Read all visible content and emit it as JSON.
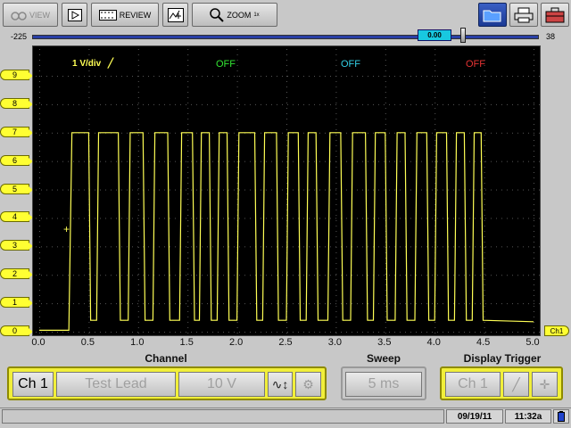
{
  "toolbar": {
    "view_label": "VIEW",
    "review_label": "REVIEW",
    "zoom_label": "ZOOM",
    "zoom_level": "1x"
  },
  "slider": {
    "left_label": "-225",
    "right_label": "38",
    "value": "0.00"
  },
  "screen": {
    "scale_label": "1 V/div",
    "ch2_state": "OFF",
    "ch3_state": "OFF",
    "ch4_state": "OFF",
    "ch2_color": "#33e633",
    "ch3_color": "#33d0e6",
    "ch4_color": "#e63333",
    "trace_color": "#ffff55"
  },
  "y_ticks": [
    "9",
    "8",
    "7",
    "6",
    "5",
    "4",
    "3",
    "2",
    "1",
    "0"
  ],
  "x_ticks": [
    "0.0",
    "0.5",
    "1.0",
    "1.5",
    "2.0",
    "2.5",
    "3.0",
    "3.5",
    "4.0",
    "4.5",
    "5.0"
  ],
  "channel_tag": "Ch1",
  "chart_data": {
    "type": "line",
    "x_range": [
      0,
      5.0
    ],
    "y_range": [
      0,
      9
    ],
    "x_unit_ticks": [
      0,
      0.5,
      1,
      1.5,
      2,
      2.5,
      3,
      3.5,
      4,
      4.5,
      5
    ],
    "series": [
      {
        "values_xy": [
          [
            0.0,
            0.05
          ],
          [
            0.3,
            0.05
          ],
          [
            0.3,
            0.1
          ],
          [
            0.33,
            7.0
          ],
          [
            0.5,
            7.0
          ],
          [
            0.52,
            0.4
          ],
          [
            0.58,
            0.4
          ],
          [
            0.6,
            7.0
          ],
          [
            0.8,
            7.0
          ],
          [
            0.82,
            0.4
          ],
          [
            0.9,
            0.4
          ],
          [
            0.92,
            7.0
          ],
          [
            1.05,
            7.0
          ],
          [
            1.07,
            0.4
          ],
          [
            1.15,
            0.4
          ],
          [
            1.17,
            7.0
          ],
          [
            1.3,
            7.0
          ],
          [
            1.32,
            0.4
          ],
          [
            1.42,
            0.4
          ],
          [
            1.44,
            7.0
          ],
          [
            1.55,
            7.0
          ],
          [
            1.57,
            0.4
          ],
          [
            1.62,
            0.4
          ],
          [
            1.64,
            7.0
          ],
          [
            1.72,
            7.0
          ],
          [
            1.74,
            0.4
          ],
          [
            1.8,
            0.4
          ],
          [
            1.82,
            7.0
          ],
          [
            1.9,
            7.0
          ],
          [
            1.92,
            0.4
          ],
          [
            2.0,
            0.4
          ],
          [
            2.02,
            7.0
          ],
          [
            2.18,
            7.0
          ],
          [
            2.2,
            0.4
          ],
          [
            2.26,
            0.4
          ],
          [
            2.28,
            7.0
          ],
          [
            2.4,
            7.0
          ],
          [
            2.42,
            0.4
          ],
          [
            2.5,
            0.4
          ],
          [
            2.52,
            7.0
          ],
          [
            2.62,
            7.0
          ],
          [
            2.64,
            0.4
          ],
          [
            2.7,
            0.4
          ],
          [
            2.72,
            7.0
          ],
          [
            2.8,
            7.0
          ],
          [
            2.82,
            0.4
          ],
          [
            2.92,
            0.4
          ],
          [
            2.94,
            7.0
          ],
          [
            3.05,
            7.0
          ],
          [
            3.07,
            0.4
          ],
          [
            3.15,
            0.4
          ],
          [
            3.17,
            7.0
          ],
          [
            3.3,
            7.0
          ],
          [
            3.32,
            0.4
          ],
          [
            3.38,
            0.4
          ],
          [
            3.4,
            7.0
          ],
          [
            3.5,
            7.0
          ],
          [
            3.52,
            0.4
          ],
          [
            3.6,
            0.4
          ],
          [
            3.62,
            7.0
          ],
          [
            3.7,
            7.0
          ],
          [
            3.72,
            0.4
          ],
          [
            3.8,
            0.4
          ],
          [
            3.82,
            7.0
          ],
          [
            3.92,
            7.0
          ],
          [
            3.94,
            0.4
          ],
          [
            4.0,
            0.4
          ],
          [
            4.02,
            7.0
          ],
          [
            4.12,
            7.0
          ],
          [
            4.14,
            0.4
          ],
          [
            4.2,
            0.4
          ],
          [
            4.22,
            7.0
          ],
          [
            4.3,
            7.0
          ],
          [
            4.32,
            0.4
          ],
          [
            4.38,
            0.4
          ],
          [
            4.4,
            7.0
          ],
          [
            4.47,
            7.0
          ],
          [
            4.49,
            0.4
          ],
          [
            5.0,
            0.35
          ]
        ]
      }
    ]
  },
  "controls": {
    "channel_title": "Channel",
    "sweep_title": "Sweep",
    "trigger_title": "Display Trigger",
    "channel_button": "Ch 1",
    "probe_button": "Test Lead",
    "volts_button": "10 V",
    "sweep_button": "5 ms",
    "trigger_button": "Ch 1"
  },
  "status": {
    "date": "09/19/11",
    "time": "11:32a"
  }
}
